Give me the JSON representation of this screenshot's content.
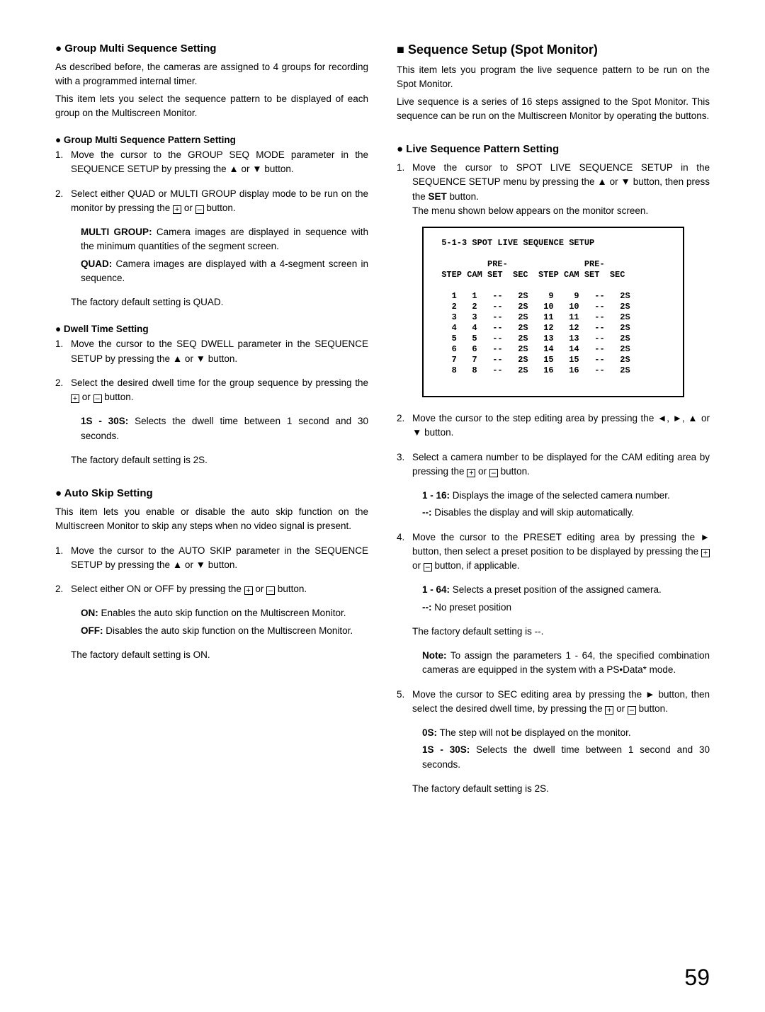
{
  "left": {
    "h_group_multi": "● Group Multi Sequence Setting",
    "intro1": "As described before, the cameras are assigned to 4 groups for recording with a programmed internal timer.",
    "intro2": "This item lets you select the sequence pattern to be displayed of each group on the Multiscreen Monitor.",
    "h_pattern": "● Group Multi Sequence Pattern Setting",
    "pat1_pre": "Move the cursor to the GROUP SEQ MODE parameter in the SEQUENCE SETUP by pressing the ▲ or ▼ button.",
    "pat2_pre": "Select either QUAD or MULTI GROUP display mode to be run on the monitor by pressing the ",
    "pat2_post": " button.",
    "multi_bold": "MULTI GROUP:",
    "multi_txt": " Camera images are displayed in sequence with the minimum quantities of the segment screen.",
    "quad_bold": "QUAD:",
    "quad_txt": " Camera images are displayed with a 4-segment screen in sequence.",
    "pat_default": "The factory default setting is QUAD.",
    "h_dwell": "● Dwell Time Setting",
    "dw1": "Move the cursor to the SEQ DWELL parameter in the SEQUENCE SETUP by pressing the ▲ or ▼ button.",
    "dw2_pre": "Select the desired dwell time for the group sequence by pressing the ",
    "dw2_post": " button.",
    "dw_range_b": "1S - 30S:",
    "dw_range": " Selects the dwell time between 1 second and 30 seconds.",
    "dw_default": "The factory default setting is 2S.",
    "h_autoskip": "● Auto Skip Setting",
    "as_intro": "This item lets you enable or disable the auto skip function on the Multiscreen Monitor to skip any steps when no video signal is present.",
    "as1": "Move the cursor to the AUTO SKIP parameter in the SEQUENCE SETUP by pressing the ▲ or ▼ button.",
    "as2_pre": "Select either ON or OFF by pressing the ",
    "as2_post": " button.",
    "on_b": "ON:",
    "on_txt": " Enables the auto skip function on the Multiscreen Monitor.",
    "off_b": "OFF:",
    "off_txt": " Disables the auto skip function on the Multiscreen Monitor.",
    "as_default": "The factory default setting is ON."
  },
  "right": {
    "h_spot": "■ Sequence Setup (Spot Monitor)",
    "sp_intro1": "This item lets you program the live sequence pattern to be run on the Spot Monitor.",
    "sp_intro2": "Live sequence is a series of 16 steps assigned to the Spot Monitor. This sequence can be run on the Multiscreen Monitor by operating the buttons.",
    "h_live": "● Live Sequence Pattern Setting",
    "lv1_pre": "Move the cursor to SPOT LIVE SEQUENCE SETUP in the SEQUENCE SETUP menu by pressing the ▲ or ▼ button, then press the ",
    "lv1_set": "SET",
    "lv1_post": " button.",
    "lv1_menu": "The menu shown below appears on the monitor screen.",
    "lv2": "Move the cursor to the step editing area by pressing the ◄, ►, ▲ or ▼ button.",
    "lv3_pre": "Select a camera number to be displayed for the CAM editing area by pressing the ",
    "lv3_post": " button.",
    "r116_b": "1 - 16:",
    "r116": " Displays the image of the selected camera number.",
    "dash_b": "--:",
    "dash_txt": " Disables the display and will skip automatically.",
    "lv4_pre": "Move the cursor to the PRESET editing area by pressing the ► button, then select a preset position to be displayed by pressing the ",
    "lv4_post": " button, if applicable.",
    "r164_b": "1 - 64:",
    "r164": " Selects a preset position of the assigned camera.",
    "dash2_b": "--:",
    "dash2_txt": " No preset position",
    "lv4_default": "The factory default setting is --.",
    "note_b": "Note:",
    "note_txt": " To assign the parameters 1 - 64, the specified combination cameras are equipped in the system with a PS•Data* mode.",
    "lv5_pre": "Move the cursor to SEC editing area by pressing the ► button, then select the desired dwell time, by pressing the ",
    "lv5_post": " button.",
    "s0_b": "0S:",
    "s0": " The step will not be displayed on the monitor.",
    "s130_b": "1S - 30S:",
    "s130": " Selects the dwell time between 1 second and 30 seconds.",
    "lv5_default": "The factory default setting is 2S."
  },
  "table": {
    "title": "5-1-3 SPOT LIVE SEQUENCE SETUP",
    "headers": [
      "STEP",
      "CAM",
      "PRE-\nSET",
      "SEC",
      "STEP",
      "CAM",
      "PRE-\nSET",
      "SEC"
    ],
    "rows": [
      [
        "1",
        "1",
        "--",
        "2S",
        "9",
        "9",
        "--",
        "2S"
      ],
      [
        "2",
        "2",
        "--",
        "2S",
        "10",
        "10",
        "--",
        "2S"
      ],
      [
        "3",
        "3",
        "--",
        "2S",
        "11",
        "11",
        "--",
        "2S"
      ],
      [
        "4",
        "4",
        "--",
        "2S",
        "12",
        "12",
        "--",
        "2S"
      ],
      [
        "5",
        "5",
        "--",
        "2S",
        "13",
        "13",
        "--",
        "2S"
      ],
      [
        "6",
        "6",
        "--",
        "2S",
        "14",
        "14",
        "--",
        "2S"
      ],
      [
        "7",
        "7",
        "--",
        "2S",
        "15",
        "15",
        "--",
        "2S"
      ],
      [
        "8",
        "8",
        "--",
        "2S",
        "16",
        "16",
        "--",
        "2S"
      ]
    ]
  },
  "icons": {
    "plus": "+",
    "minus": "–",
    "or": " or "
  },
  "page": "59"
}
